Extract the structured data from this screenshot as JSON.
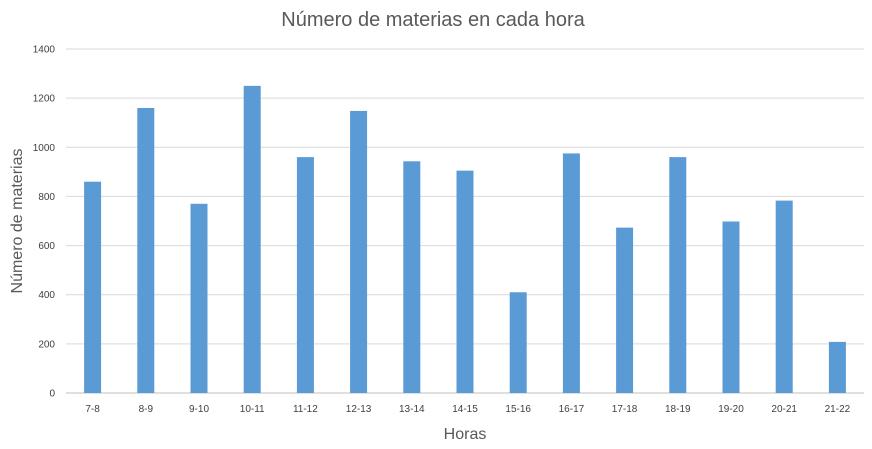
{
  "chart_data": {
    "type": "bar",
    "title": "Número de materias en cada hora",
    "xlabel": "Horas",
    "ylabel": "Número de materias",
    "categories": [
      "7-8",
      "8-9",
      "9-10",
      "10-11",
      "11-12",
      "12-13",
      "13-14",
      "14-15",
      "15-16",
      "16-17",
      "17-18",
      "18-19",
      "19-20",
      "20-21",
      "21-22"
    ],
    "values": [
      860,
      1160,
      770,
      1250,
      960,
      1148,
      943,
      905,
      410,
      975,
      673,
      960,
      698,
      783,
      208
    ],
    "ylim": [
      0,
      1400
    ],
    "yticks": [
      "0",
      "200",
      "400",
      "600",
      "800",
      "1000",
      "1200",
      "1400"
    ],
    "grid": true,
    "legend": "none",
    "bar_color": "#5b9bd5"
  }
}
